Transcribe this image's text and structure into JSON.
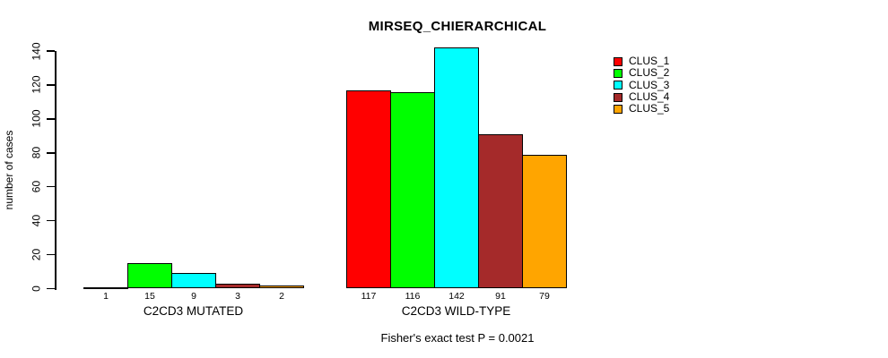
{
  "title": "MIRSEQ_CHIERARCHICAL",
  "footer": "Fisher's exact test P = 0.0021",
  "colors": {
    "background": "#FFFFFF",
    "axis": "#000000",
    "text": "#000000"
  },
  "chart_data": {
    "type": "bar",
    "title": "MIRSEQ_CHIERARCHICAL",
    "xlabel": "",
    "ylabel": "number of cases",
    "ylim": [
      0,
      140
    ],
    "yticks": [
      0,
      20,
      40,
      60,
      80,
      100,
      120,
      140
    ],
    "grid": false,
    "legend_position": "right",
    "categories": [
      "C2CD3 MUTATED",
      "C2CD3 WILD-TYPE"
    ],
    "series": [
      {
        "name": "CLUS_1",
        "color": "#FF0000",
        "values": [
          1,
          117
        ]
      },
      {
        "name": "CLUS_2",
        "color": "#00FF00",
        "values": [
          15,
          116
        ]
      },
      {
        "name": "CLUS_3",
        "color": "#00FFFF",
        "values": [
          9,
          142
        ]
      },
      {
        "name": "CLUS_4",
        "color": "#A52A2A",
        "values": [
          3,
          91
        ]
      },
      {
        "name": "CLUS_5",
        "color": "#FFA500",
        "values": [
          2,
          79
        ]
      }
    ],
    "bar_value_labels": [
      [
        "1",
        "15",
        "9",
        "3",
        "2"
      ],
      [
        "117",
        "116",
        "142",
        "91",
        "79"
      ]
    ],
    "annotation": "Fisher's exact test P = 0.0021"
  }
}
